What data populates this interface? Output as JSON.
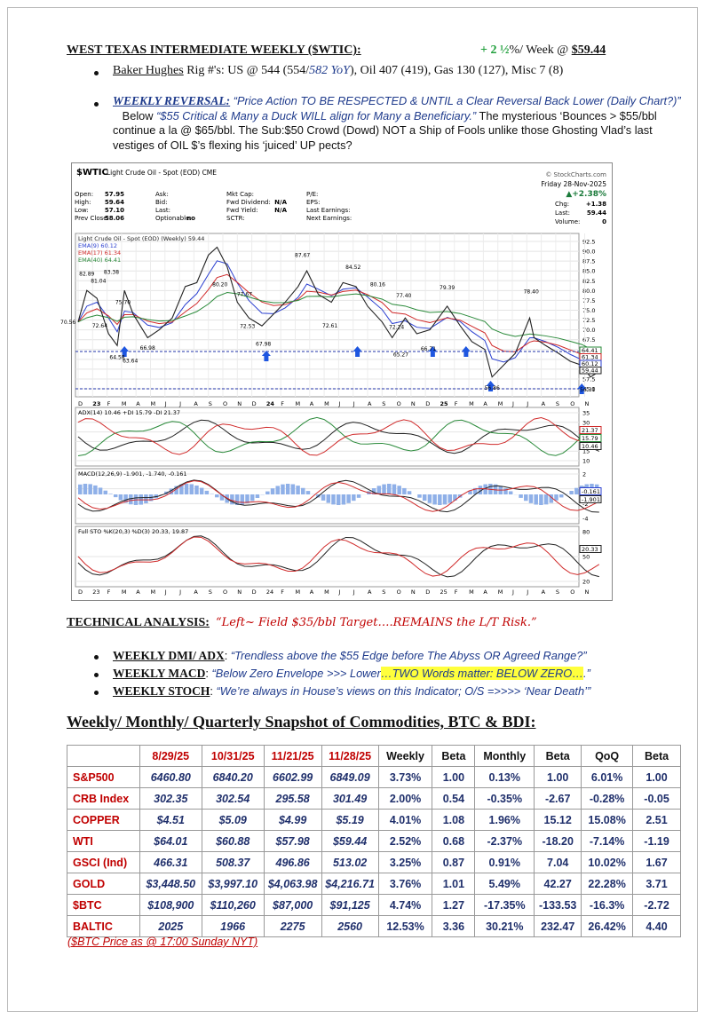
{
  "header": {
    "title": "WEST TEXAS INTERMEDIATE WEEKLY ($WTIC):",
    "change": "+ 2 ½",
    "change_unit": "%/ Week @ ",
    "price": "$59.44"
  },
  "bullets": {
    "rigs": {
      "label": "Baker Hughes",
      "text": " Rig #'s: US @ 544 (554/",
      "yoy": "582 YoY",
      "rest": "), Oil 407 (419), Gas 130 (127), Misc 7 (8)"
    },
    "reversal": {
      "label": "WEEKLY REVERSAL:",
      "quote1": " “Price Action TO BE RESPECTED & UNTIL a Clear Reversal Back Lower (Daily Chart?)”",
      "mid": "   Below ",
      "quote2": "“$55 Critical & Many a Duck WILL align for Many a Beneficiary.”",
      "rest": "  The mysterious ‘Bounces > $55/bbl continue a la @ $65/bbl. The Sub:$50 Crowd (Dowd) NOT a Ship of Fools unlike those Ghosting Vlad’s last vestiges of OIL $’s flexing his ‘juiced’ UP pects?"
    }
  },
  "chart_image": {
    "symbol": "$WTIC",
    "name": "Light Crude Oil - Spot (EOD) CME",
    "credit": "© StockCharts.com",
    "date": "Friday 28-Nov-2025",
    "change_pct": "▲+2.38%",
    "quote_cols": [
      [
        [
          "Open:",
          "57.95"
        ],
        [
          "High:",
          "59.64"
        ],
        [
          "Low:",
          "57.10"
        ],
        [
          "Prev Close:",
          "58.06"
        ]
      ],
      [
        [
          "Ask:",
          ""
        ],
        [
          "Bid:",
          ""
        ],
        [
          "Last:",
          ""
        ],
        [
          "Optionable:",
          "no"
        ]
      ],
      [
        [
          "Mkt Cap:",
          ""
        ],
        [
          "Fwd Dividend:",
          "N/A"
        ],
        [
          "Fwd Yield:",
          "N/A"
        ],
        [
          "SCTR:",
          ""
        ]
      ],
      [
        [
          "P/E:",
          ""
        ],
        [
          "EPS:",
          ""
        ],
        [
          "Last Earnings:",
          ""
        ],
        [
          "Next Earnings:",
          ""
        ]
      ],
      [
        [
          "Chg:",
          "+1.38"
        ],
        [
          "Last:",
          "59.44"
        ],
        [
          "Volume:",
          "0"
        ]
      ]
    ],
    "price_legend": [
      "Light Crude Oil - Spot (EOD) (Weekly) 59.44",
      "EMA(9) 60.12",
      "EMA(17) 61.34",
      "EMA(40) 64.41"
    ],
    "price_ticks": [
      "92.5",
      "90.0",
      "87.5",
      "85.0",
      "82.5",
      "80.0",
      "77.5",
      "75.0",
      "72.5",
      "70.0",
      "67.5",
      "65.0",
      "62.5",
      "60.0",
      "57.5",
      "55.0"
    ],
    "price_boxes": [
      "64.41",
      "61.34",
      "60.12",
      "59.44"
    ],
    "annotations": [
      "70.56",
      "82.89",
      "81.04",
      "83.38",
      "75.70",
      "72.64",
      "64.58",
      "63.64",
      "66.98",
      "80.20",
      "77.67",
      "72.53",
      "67.98",
      "87.67",
      "84.52",
      "80.16",
      "72.61",
      "77.40",
      "72.24",
      "65.27",
      "79.39",
      "66.71",
      "78.40",
      "56.86",
      "62.03",
      "56.31"
    ],
    "months": [
      "D",
      "23",
      "F",
      "M",
      "A",
      "M",
      "J",
      "J",
      "A",
      "S",
      "O",
      "N",
      "D",
      "24",
      "F",
      "M",
      "A",
      "M",
      "J",
      "J",
      "A",
      "S",
      "O",
      "N",
      "D",
      "25",
      "F",
      "M",
      "A",
      "M",
      "J",
      "J",
      "A",
      "S",
      "O",
      "N"
    ],
    "adx_legend": "ADX(14) 10.46 +DI 15.79 -DI 21.37",
    "adx_ticks": [
      "35",
      "30",
      "25",
      "20",
      "15",
      "10"
    ],
    "adx_boxes": [
      "21.37",
      "15.79",
      "10.46"
    ],
    "macd_legend": "MACD(12,26,9) -1.901, -1.740, -0.161",
    "macd_ticks": [
      "2",
      "0",
      "-2",
      "-4"
    ],
    "macd_boxes": [
      "-0.161",
      "-1.901"
    ],
    "sto_legend": "Full STO %K(20,3) %D(3) 20.33, 19.87",
    "sto_ticks": [
      "80",
      "50",
      "20"
    ],
    "sto_boxes": [
      "20.33"
    ]
  },
  "technical": {
    "heading": "TECHNICAL ANALYSIS:",
    "quote": "“Left~ Field $35/bbl Target….REMAINS the L/T Risk.”",
    "items": [
      {
        "label": "WEEKLY DMI/ ADX",
        "sep": ": ",
        "text": "“Trendless above the $55 Edge before The Abyss OR Agreed Range?”",
        "highlight": "",
        "tail": ""
      },
      {
        "label": "WEEKLY MACD",
        "sep": ": ",
        "text": "“Below Zero Envelope >>> Lower",
        "highlight": "…TWO Words matter: BELOW ZERO…",
        "tail": ".”"
      },
      {
        "label": "WEEKLY STOCH",
        "sep": ": ",
        "text": "“We’re always in House’s views on this Indicator; O/S =>>>> ‘Near Death’”",
        "highlight": "",
        "tail": ""
      }
    ]
  },
  "table": {
    "title": "Weekly/ Monthly/ Quarterly Snapshot of Commodities, BTC & BDI:",
    "header": [
      "8/29/25",
      "10/31/25",
      "11/21/25",
      "11/28/25",
      "Weekly",
      "Beta",
      "Monthly",
      "Beta",
      "QoQ",
      "Beta"
    ],
    "rows": [
      [
        "S&P500",
        "6460.80",
        "6840.20",
        "6602.99",
        "6849.09",
        "3.73%",
        "1.00",
        "0.13%",
        "1.00",
        "6.01%",
        "1.00"
      ],
      [
        "CRB Index",
        "302.35",
        "302.54",
        "295.58",
        "301.49",
        "2.00%",
        "0.54",
        "-0.35%",
        "-2.67",
        "-0.28%",
        "-0.05"
      ],
      [
        "COPPER",
        "$4.51",
        "$5.09",
        "$4.99",
        "$5.19",
        "4.01%",
        "1.08",
        "1.96%",
        "15.12",
        "15.08%",
        "2.51"
      ],
      [
        "WTI",
        "$64.01",
        "$60.88",
        "$57.98",
        "$59.44",
        "2.52%",
        "0.68",
        "-2.37%",
        "-18.20",
        "-7.14%",
        "-1.19"
      ],
      [
        "GSCI (Ind)",
        "466.31",
        "508.37",
        "496.86",
        "513.02",
        "3.25%",
        "0.87",
        "0.91%",
        "7.04",
        "10.02%",
        "1.67"
      ],
      [
        "GOLD",
        "$3,448.50",
        "$3,997.10",
        "$4,063.98",
        "$4,216.71",
        "3.76%",
        "1.01",
        "5.49%",
        "42.27",
        "22.28%",
        "3.71"
      ],
      [
        "$BTC",
        "$108,900",
        "$110,260",
        "$87,000",
        "$91,125",
        "4.74%",
        "1.27",
        "-17.35%",
        "-133.53",
        "-16.3%",
        "-2.72"
      ],
      [
        "BALTIC",
        "2025",
        "1966",
        "2275",
        "2560",
        "12.53%",
        "3.36",
        "30.21%",
        "232.47",
        "26.42%",
        "4.40"
      ]
    ]
  },
  "footnote": "($BTC Price as @ 17:00 Sunday NYT)"
}
